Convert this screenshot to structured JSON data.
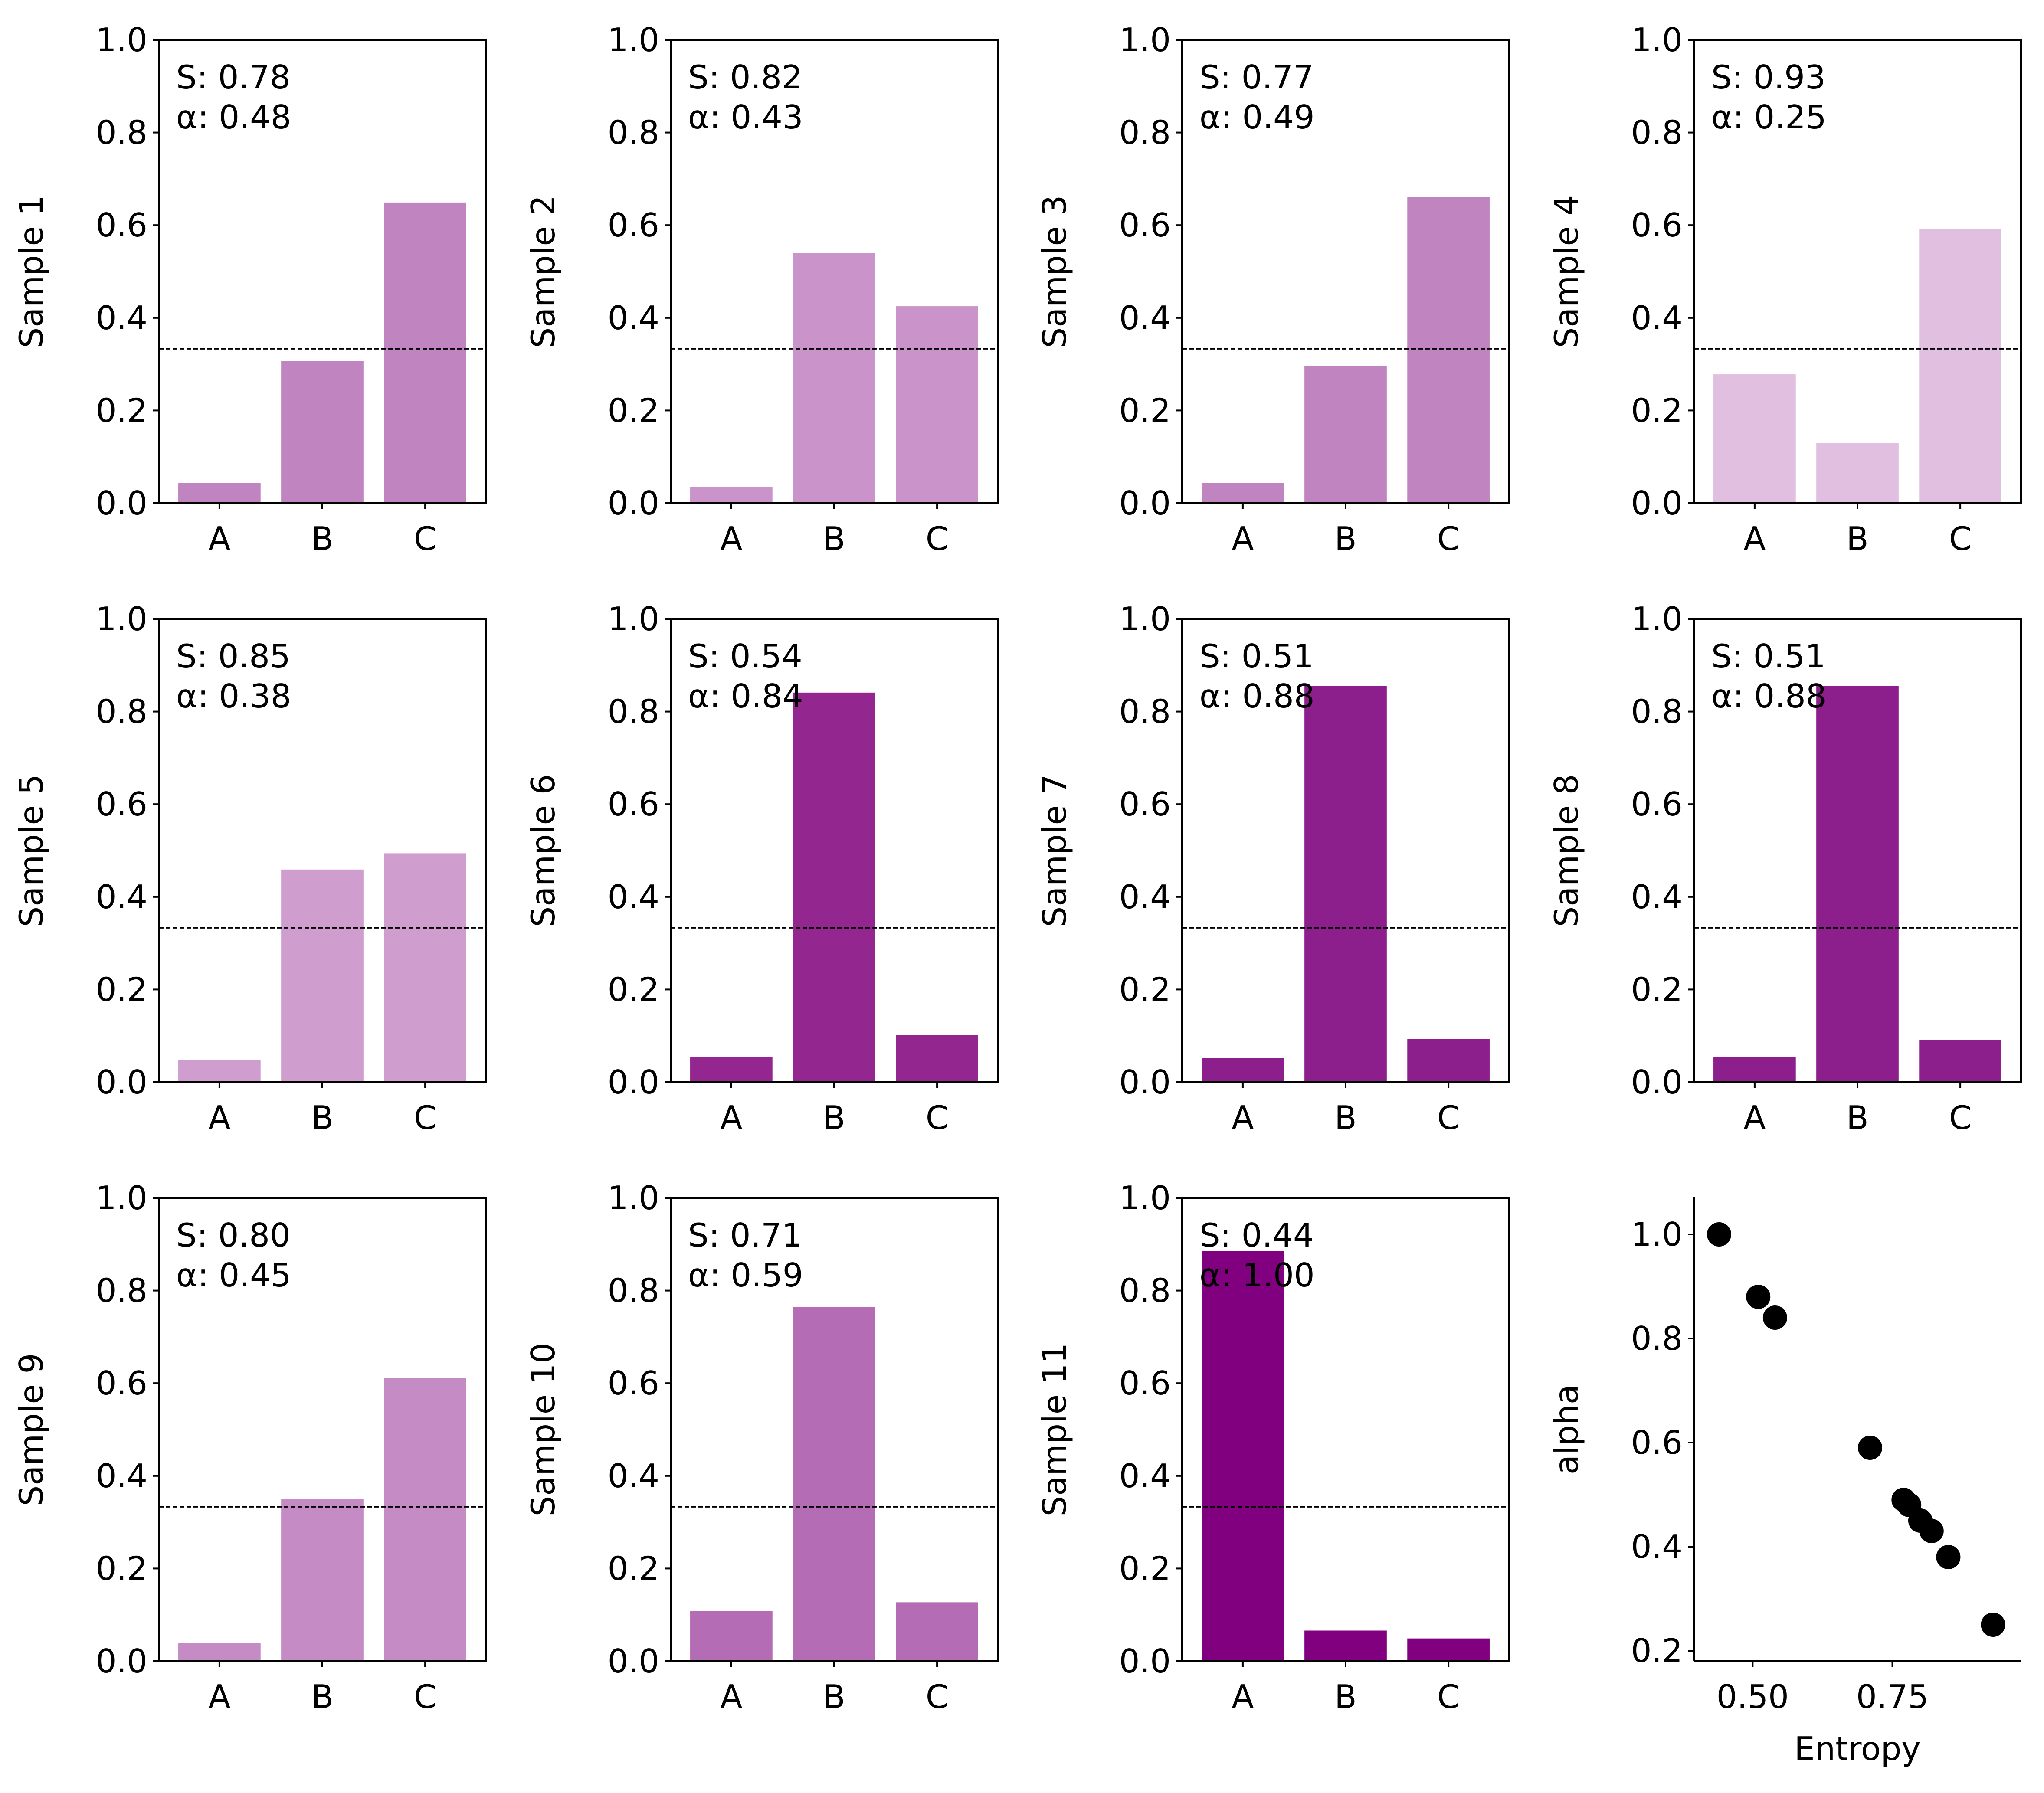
{
  "chart_data": [
    {
      "type": "bar",
      "categories": [
        "A",
        "B",
        "C"
      ],
      "values": [
        0.044,
        0.307,
        0.649
      ],
      "ylabel": "Sample 1",
      "ylim": [
        0,
        1
      ],
      "yticks": [
        "0.0",
        "0.2",
        "0.4",
        "0.6",
        "0.8",
        "1.0"
      ],
      "reference_line": 0.333,
      "annotation": {
        "s": "S: 0.78",
        "alpha": "α: 0.48"
      },
      "color": "#c084c0",
      "alpha_value": 0.48
    },
    {
      "type": "bar",
      "categories": [
        "A",
        "B",
        "C"
      ],
      "values": [
        0.035,
        0.54,
        0.425
      ],
      "ylabel": "Sample 2",
      "ylim": [
        0,
        1
      ],
      "yticks": [
        "0.0",
        "0.2",
        "0.4",
        "0.6",
        "0.8",
        "1.0"
      ],
      "reference_line": 0.333,
      "annotation": {
        "s": "S: 0.82",
        "alpha": "α: 0.43"
      },
      "color": "#ca94ca",
      "alpha_value": 0.43
    },
    {
      "type": "bar",
      "categories": [
        "A",
        "B",
        "C"
      ],
      "values": [
        0.044,
        0.295,
        0.661
      ],
      "ylabel": "Sample 3",
      "ylim": [
        0,
        1
      ],
      "yticks": [
        "0.0",
        "0.2",
        "0.4",
        "0.6",
        "0.8",
        "1.0"
      ],
      "reference_line": 0.333,
      "annotation": {
        "s": "S: 0.77",
        "alpha": "α: 0.49"
      },
      "color": "#c084c0",
      "alpha_value": 0.49
    },
    {
      "type": "bar",
      "categories": [
        "A",
        "B",
        "C"
      ],
      "values": [
        0.278,
        0.13,
        0.591
      ],
      "ylabel": "Sample 4",
      "ylim": [
        0,
        1
      ],
      "yticks": [
        "0.0",
        "0.2",
        "0.4",
        "0.6",
        "0.8",
        "1.0"
      ],
      "reference_line": 0.333,
      "annotation": {
        "s": "S: 0.93",
        "alpha": "α: 0.25"
      },
      "color": "#e0bfe0",
      "alpha_value": 0.25
    },
    {
      "type": "bar",
      "categories": [
        "A",
        "B",
        "C"
      ],
      "values": [
        0.047,
        0.459,
        0.494
      ],
      "ylabel": "Sample 5",
      "ylim": [
        0,
        1
      ],
      "yticks": [
        "0.0",
        "0.2",
        "0.4",
        "0.6",
        "0.8",
        "1.0"
      ],
      "reference_line": 0.333,
      "annotation": {
        "s": "S: 0.85",
        "alpha": "α: 0.38"
      },
      "color": "#cf9ecf",
      "alpha_value": 0.38
    },
    {
      "type": "bar",
      "categories": [
        "A",
        "B",
        "C"
      ],
      "values": [
        0.055,
        0.841,
        0.102
      ],
      "ylabel": "Sample 6",
      "ylim": [
        0,
        1
      ],
      "yticks": [
        "0.0",
        "0.2",
        "0.4",
        "0.6",
        "0.8",
        "1.0"
      ],
      "reference_line": 0.333,
      "annotation": {
        "s": "S: 0.54",
        "alpha": "α: 0.84"
      },
      "color": "#93278f",
      "alpha_value": 0.84
    },
    {
      "type": "bar",
      "categories": [
        "A",
        "B",
        "C"
      ],
      "values": [
        0.052,
        0.855,
        0.093
      ],
      "ylabel": "Sample 7",
      "ylim": [
        0,
        1
      ],
      "yticks": [
        "0.0",
        "0.2",
        "0.4",
        "0.6",
        "0.8",
        "1.0"
      ],
      "reference_line": 0.333,
      "annotation": {
        "s": "S: 0.51",
        "alpha": "α: 0.88"
      },
      "color": "#8d1f8d",
      "alpha_value": 0.88
    },
    {
      "type": "bar",
      "categories": [
        "A",
        "B",
        "C"
      ],
      "values": [
        0.054,
        0.855,
        0.091
      ],
      "ylabel": "Sample 8",
      "ylim": [
        0,
        1
      ],
      "yticks": [
        "0.0",
        "0.2",
        "0.4",
        "0.6",
        "0.8",
        "1.0"
      ],
      "reference_line": 0.333,
      "annotation": {
        "s": "S: 0.51",
        "alpha": "α: 0.88"
      },
      "color": "#8d1f8d",
      "alpha_value": 0.88
    },
    {
      "type": "bar",
      "categories": [
        "A",
        "B",
        "C"
      ],
      "values": [
        0.039,
        0.35,
        0.611
      ],
      "ylabel": "Sample 9",
      "ylim": [
        0,
        1
      ],
      "yticks": [
        "0.0",
        "0.2",
        "0.4",
        "0.6",
        "0.8",
        "1.0"
      ],
      "reference_line": 0.333,
      "annotation": {
        "s": "S: 0.80",
        "alpha": "α: 0.45"
      },
      "color": "#c48bc4",
      "alpha_value": 0.45
    },
    {
      "type": "bar",
      "categories": [
        "A",
        "B",
        "C"
      ],
      "values": [
        0.108,
        0.765,
        0.127
      ],
      "ylabel": "Sample 10",
      "ylim": [
        0,
        1
      ],
      "yticks": [
        "0.0",
        "0.2",
        "0.4",
        "0.6",
        "0.8",
        "1.0"
      ],
      "reference_line": 0.333,
      "annotation": {
        "s": "S: 0.71",
        "alpha": "α: 0.59"
      },
      "color": "#b46cb4",
      "alpha_value": 0.59
    },
    {
      "type": "bar",
      "categories": [
        "A",
        "B",
        "C"
      ],
      "values": [
        0.885,
        0.066,
        0.049
      ],
      "ylabel": "Sample 11",
      "ylim": [
        0,
        1
      ],
      "yticks": [
        "0.0",
        "0.2",
        "0.4",
        "0.6",
        "0.8",
        "1.0"
      ],
      "reference_line": 0.333,
      "annotation": {
        "s": "S: 0.44",
        "alpha": "α: 1.00"
      },
      "color": "#800080",
      "alpha_value": 1.0
    },
    {
      "type": "scatter",
      "xlabel": "Entropy",
      "ylabel": "alpha",
      "xlim": [
        0.395,
        0.98
      ],
      "ylim": [
        0.18,
        1.07
      ],
      "xticks": [
        0.5,
        0.75
      ],
      "xtick_labels": [
        "0.50",
        "0.75"
      ],
      "yticks": [
        0.2,
        0.4,
        0.6,
        0.8,
        1.0
      ],
      "ytick_labels": [
        "0.2",
        "0.4",
        "0.6",
        "0.8",
        "1.0"
      ],
      "color": "#000000",
      "x": [
        0.44,
        0.51,
        0.54,
        0.71,
        0.77,
        0.78,
        0.8,
        0.82,
        0.85,
        0.93
      ],
      "y": [
        1.0,
        0.88,
        0.84,
        0.59,
        0.49,
        0.48,
        0.45,
        0.43,
        0.38,
        0.25
      ]
    }
  ]
}
